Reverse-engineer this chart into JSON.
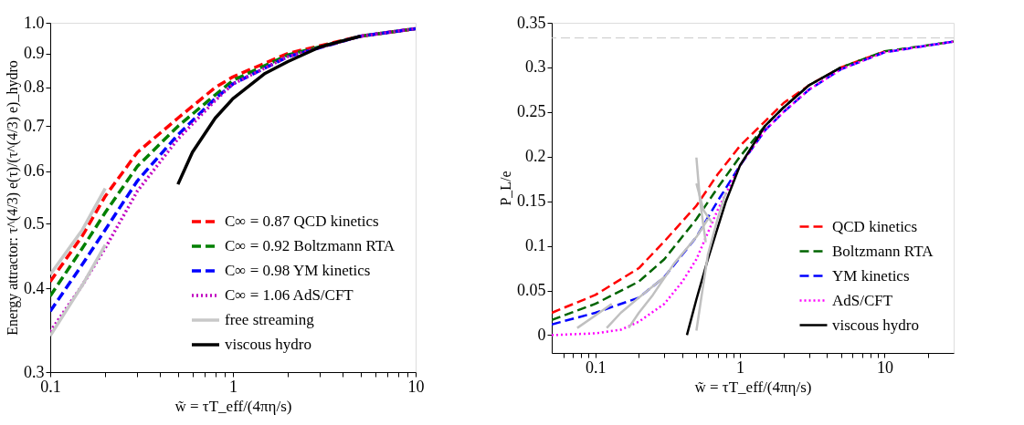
{
  "chart_data": [
    {
      "type": "line",
      "xlabel": "w̃ = τT_eff/(4πη/s)",
      "ylabel": "Energy attractor: τ^(4/3) e(τ)/(τ^(4/3) e)_hydro",
      "log": "xy",
      "xlim": [
        0.1,
        10
      ],
      "ylim": [
        0.3,
        1.0
      ],
      "xticks": [
        0.1,
        {
          "value": 0.2,
          "label": null
        },
        {
          "value": 0.3,
          "label": null
        },
        {
          "value": 0.4,
          "label": null
        },
        {
          "value": 0.5,
          "label": null
        },
        {
          "value": 0.6,
          "label": null
        },
        {
          "value": 0.7,
          "label": null
        },
        {
          "value": 0.8,
          "label": null
        },
        {
          "value": 0.9,
          "label": null
        },
        1,
        {
          "value": 2,
          "label": null
        },
        {
          "value": 3,
          "label": null
        },
        {
          "value": 4,
          "label": null
        },
        {
          "value": 5,
          "label": null
        },
        {
          "value": 6,
          "label": null
        },
        {
          "value": 7,
          "label": null
        },
        {
          "value": 8,
          "label": null
        },
        {
          "value": 9,
          "label": null
        },
        10
      ],
      "yticks": [
        0.3,
        0.4,
        0.5,
        0.6,
        0.7,
        0.8,
        0.9,
        {
          "value": 1.0,
          "label": "1.0"
        }
      ],
      "grid": false,
      "legend": "bottom right",
      "series": [
        {
          "color": "#c8c8c8",
          "line_style": "solid",
          "x": [
            0.1,
            0.15,
            0.2
          ],
          "values": [
            0.34,
            0.405,
            0.465
          ]
        },
        {
          "name": "C∞ = 0.87 QCD kinetics",
          "color": "#ff0000",
          "line_style": "dashed",
          "x": [
            0.1,
            0.15,
            0.2,
            0.3,
            0.5,
            0.8,
            1,
            2,
            5,
            10
          ],
          "values": [
            0.41,
            0.48,
            0.55,
            0.64,
            0.72,
            0.8,
            0.83,
            0.9,
            0.955,
            0.98
          ]
        },
        {
          "name": "C∞ = 0.92 Boltzmann RTA",
          "color": "#008000",
          "line_style": "dashed",
          "x": [
            0.1,
            0.15,
            0.2,
            0.3,
            0.5,
            0.8,
            1,
            2,
            5,
            10
          ],
          "values": [
            0.39,
            0.46,
            0.52,
            0.61,
            0.7,
            0.78,
            0.82,
            0.895,
            0.955,
            0.98
          ]
        },
        {
          "name": "C∞ = 0.98 YM kinetics",
          "color": "#0000ff",
          "line_style": "dashed",
          "x": [
            0.1,
            0.15,
            0.2,
            0.3,
            0.5,
            0.8,
            1,
            2,
            5,
            10
          ],
          "values": [
            0.37,
            0.435,
            0.49,
            0.58,
            0.68,
            0.77,
            0.81,
            0.89,
            0.955,
            0.98
          ]
        },
        {
          "name": "C∞ = 1.06 AdS/CFT",
          "color": "#c000c0",
          "line_style": "dotted",
          "x": [
            0.1,
            0.15,
            0.2,
            0.3,
            0.5,
            0.8,
            1,
            2,
            5,
            10
          ],
          "values": [
            0.345,
            0.405,
            0.46,
            0.56,
            0.67,
            0.765,
            0.81,
            0.89,
            0.955,
            0.98
          ]
        },
        {
          "name": "free streaming",
          "color": "#c8c8c8",
          "line_style": "solid",
          "x": [
            0.1,
            0.15,
            0.2
          ],
          "values": [
            0.42,
            0.49,
            0.565
          ]
        },
        {
          "name": "viscous hydro",
          "color": "#000000",
          "line_style": "solid",
          "x": [
            0.5,
            0.6,
            0.8,
            1,
            1.5,
            2,
            3,
            5
          ],
          "values": [
            0.573,
            0.64,
            0.72,
            0.77,
            0.84,
            0.875,
            0.92,
            0.955
          ]
        }
      ]
    },
    {
      "type": "line",
      "xlabel": "w̃ = τT_eff/(4πη/s)",
      "ylabel": "P_L/e",
      "log": "x",
      "xlim": [
        0.05,
        30
      ],
      "ylim": [
        -0.02,
        0.35
      ],
      "xticks": [
        {
          "value": 0.06,
          "label": null
        },
        {
          "value": 0.07,
          "label": null
        },
        {
          "value": 0.08,
          "label": null
        },
        {
          "value": 0.09,
          "label": null
        },
        0.1,
        {
          "value": 0.2,
          "label": null
        },
        {
          "value": 0.3,
          "label": null
        },
        {
          "value": 0.4,
          "label": null
        },
        {
          "value": 0.5,
          "label": null
        },
        {
          "value": 0.6,
          "label": null
        },
        {
          "value": 0.7,
          "label": null
        },
        {
          "value": 0.8,
          "label": null
        },
        {
          "value": 0.9,
          "label": null
        },
        1,
        {
          "value": 2,
          "label": null
        },
        {
          "value": 3,
          "label": null
        },
        {
          "value": 4,
          "label": null
        },
        {
          "value": 5,
          "label": null
        },
        {
          "value": 6,
          "label": null
        },
        {
          "value": 7,
          "label": null
        },
        {
          "value": 8,
          "label": null
        },
        {
          "value": 9,
          "label": null
        },
        10,
        {
          "value": 20,
          "label": null
        }
      ],
      "yticks": [
        0,
        0.05,
        0.1,
        0.15,
        0.2,
        0.25,
        0.3,
        0.35
      ],
      "grid": false,
      "legend": "bottom right",
      "ref_lines": [
        {
          "axis": "y",
          "value": 0.333,
          "color": "#c8c8c8",
          "line_style": "dashed"
        }
      ],
      "series": [
        {
          "color": "#c0c0c0",
          "line_style": "solid",
          "x": [
            0.075,
            0.1,
            0.13
          ],
          "values": [
            0.008,
            0.022,
            0.035
          ]
        },
        {
          "color": "#c0c0c0",
          "line_style": "solid",
          "x": [
            0.12,
            0.15,
            0.2,
            0.3
          ],
          "values": [
            0.008,
            0.025,
            0.042,
            0.065
          ]
        },
        {
          "color": "#c0c0c0",
          "line_style": "solid",
          "x": [
            0.17,
            0.2,
            0.25,
            0.35,
            0.5,
            0.6
          ],
          "values": [
            0.008,
            0.025,
            0.045,
            0.08,
            0.11,
            0.13
          ]
        },
        {
          "color": "#c0c0c0",
          "line_style": "solid",
          "x": [
            0.5,
            0.53,
            0.58
          ],
          "values": [
            0.199,
            0.15,
            0.104
          ]
        },
        {
          "color": "#c0c0c0",
          "line_style": "solid",
          "x": [
            0.5,
            0.56,
            0.64
          ],
          "values": [
            0.17,
            0.14,
            0.126
          ]
        },
        {
          "color": "#c0c0c0",
          "line_style": "solid",
          "x": [
            0.5,
            0.55,
            0.6,
            0.7,
            0.8
          ],
          "values": [
            0.005,
            0.05,
            0.09,
            0.13,
            0.16
          ]
        },
        {
          "name": "QCD kinetics",
          "color": "#ff0000",
          "line_style": "dashed",
          "x": [
            0.05,
            0.1,
            0.2,
            0.3,
            0.5,
            0.7,
            1,
            1.5,
            2,
            3,
            5,
            10
          ],
          "values": [
            0.025,
            0.045,
            0.075,
            0.105,
            0.145,
            0.18,
            0.212,
            0.24,
            0.26,
            0.28,
            0.3,
            0.318
          ]
        },
        {
          "name": "Boltzmann RTA",
          "color": "#006400",
          "line_style": "dashed",
          "x": [
            0.05,
            0.1,
            0.2,
            0.3,
            0.5,
            0.7,
            1,
            1.5,
            2,
            3,
            5,
            10,
            30
          ],
          "values": [
            0.017,
            0.035,
            0.06,
            0.085,
            0.13,
            0.165,
            0.2,
            0.235,
            0.255,
            0.28,
            0.3,
            0.318,
            0.329
          ]
        },
        {
          "name": "YM kinetics",
          "color": "#0000ff",
          "line_style": "dashed",
          "x": [
            0.05,
            0.1,
            0.2,
            0.3,
            0.5,
            0.7,
            1,
            1.5,
            2,
            3,
            5,
            10,
            30
          ],
          "values": [
            0.012,
            0.025,
            0.042,
            0.065,
            0.11,
            0.15,
            0.19,
            0.23,
            0.25,
            0.275,
            0.298,
            0.317,
            0.329
          ]
        },
        {
          "name": "AdS/CFT",
          "color": "#ff00ff",
          "line_style": "dotted",
          "x": [
            0.05,
            0.1,
            0.15,
            0.2,
            0.3,
            0.4,
            0.5,
            0.7,
            1,
            1.5,
            2,
            3,
            5,
            10,
            30
          ],
          "values": [
            0.0,
            0.002,
            0.006,
            0.015,
            0.035,
            0.06,
            0.085,
            0.14,
            0.19,
            0.23,
            0.25,
            0.275,
            0.298,
            0.317,
            0.329
          ]
        },
        {
          "name": "viscous hydro",
          "color": "#000000",
          "line_style": "solid",
          "x": [
            0.43,
            0.5,
            0.6,
            0.7,
            0.8,
            1,
            1.5,
            2,
            3,
            5
          ],
          "values": [
            0.0,
            0.04,
            0.085,
            0.12,
            0.15,
            0.19,
            0.235,
            0.255,
            0.28,
            0.3
          ]
        }
      ]
    }
  ]
}
